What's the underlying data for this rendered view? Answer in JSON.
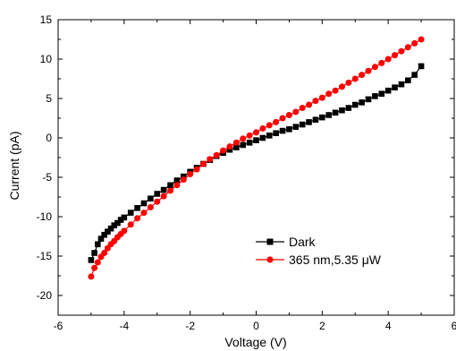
{
  "chart_data": {
    "type": "scatter",
    "title": "",
    "xlabel": "Voltage (V)",
    "ylabel": "Current (pA)",
    "xlim": [
      -6,
      6
    ],
    "ylim": [
      -22.5,
      15
    ],
    "x_ticks": [
      -6,
      -4,
      -2,
      0,
      2,
      4,
      6
    ],
    "y_ticks": [
      15,
      10,
      5,
      0,
      -5,
      -10,
      -15,
      -20
    ],
    "grid": false,
    "legend_position": "bottom-right",
    "series": [
      {
        "name": "Dark",
        "color": "#000000",
        "marker": "square",
        "x": [
          -5.0,
          -4.9,
          -4.8,
          -4.7,
          -4.6,
          -4.5,
          -4.4,
          -4.3,
          -4.2,
          -4.1,
          -4.0,
          -3.8,
          -3.6,
          -3.4,
          -3.2,
          -3.0,
          -2.8,
          -2.6,
          -2.4,
          -2.2,
          -2.0,
          -1.8,
          -1.6,
          -1.4,
          -1.2,
          -1.0,
          -0.8,
          -0.6,
          -0.4,
          -0.2,
          0.0,
          0.2,
          0.4,
          0.6,
          0.8,
          1.0,
          1.2,
          1.4,
          1.6,
          1.8,
          2.0,
          2.2,
          2.4,
          2.6,
          2.8,
          3.0,
          3.2,
          3.4,
          3.6,
          3.8,
          4.0,
          4.2,
          4.4,
          4.6,
          4.8,
          5.0
        ],
        "y": [
          -15.5,
          -14.6,
          -13.5,
          -12.8,
          -12.3,
          -11.9,
          -11.5,
          -11.1,
          -10.8,
          -10.4,
          -10.1,
          -9.5,
          -8.9,
          -8.3,
          -7.7,
          -7.1,
          -6.6,
          -6.0,
          -5.4,
          -4.9,
          -4.3,
          -3.8,
          -3.3,
          -2.8,
          -2.3,
          -1.9,
          -1.5,
          -1.2,
          -0.9,
          -0.6,
          -0.3,
          0.0,
          0.3,
          0.6,
          0.9,
          1.1,
          1.4,
          1.7,
          2.0,
          2.3,
          2.6,
          2.9,
          3.2,
          3.5,
          3.8,
          4.2,
          4.5,
          4.9,
          5.3,
          5.6,
          6.0,
          6.4,
          6.8,
          7.3,
          8.0,
          9.1
        ]
      },
      {
        "name": "365 nm,5.35 μW",
        "color": "#ff0000",
        "marker": "circle",
        "x": [
          -5.0,
          -4.9,
          -4.8,
          -4.7,
          -4.6,
          -4.5,
          -4.4,
          -4.3,
          -4.2,
          -4.1,
          -4.0,
          -3.8,
          -3.6,
          -3.4,
          -3.2,
          -3.0,
          -2.8,
          -2.6,
          -2.4,
          -2.2,
          -2.0,
          -1.8,
          -1.6,
          -1.4,
          -1.2,
          -1.0,
          -0.8,
          -0.6,
          -0.4,
          -0.2,
          0.0,
          0.2,
          0.4,
          0.6,
          0.8,
          1.0,
          1.2,
          1.4,
          1.6,
          1.8,
          2.0,
          2.2,
          2.4,
          2.6,
          2.8,
          3.0,
          3.2,
          3.4,
          3.6,
          3.8,
          4.0,
          4.2,
          4.4,
          4.6,
          4.8,
          5.0
        ],
        "y": [
          -17.6,
          -16.5,
          -15.8,
          -15.1,
          -14.6,
          -14.0,
          -13.5,
          -13.1,
          -12.6,
          -12.2,
          -11.8,
          -11.0,
          -10.2,
          -9.5,
          -8.8,
          -8.1,
          -7.4,
          -6.7,
          -6.0,
          -5.3,
          -4.6,
          -4.0,
          -3.3,
          -2.7,
          -2.2,
          -1.6,
          -1.1,
          -0.6,
          -0.1,
          0.3,
          0.7,
          1.2,
          1.6,
          2.0,
          2.5,
          2.9,
          3.3,
          3.8,
          4.2,
          4.7,
          5.1,
          5.6,
          6.0,
          6.5,
          7.0,
          7.5,
          8.0,
          8.5,
          9.0,
          9.5,
          10.0,
          10.5,
          11.0,
          11.5,
          12.0,
          12.5
        ]
      }
    ]
  }
}
